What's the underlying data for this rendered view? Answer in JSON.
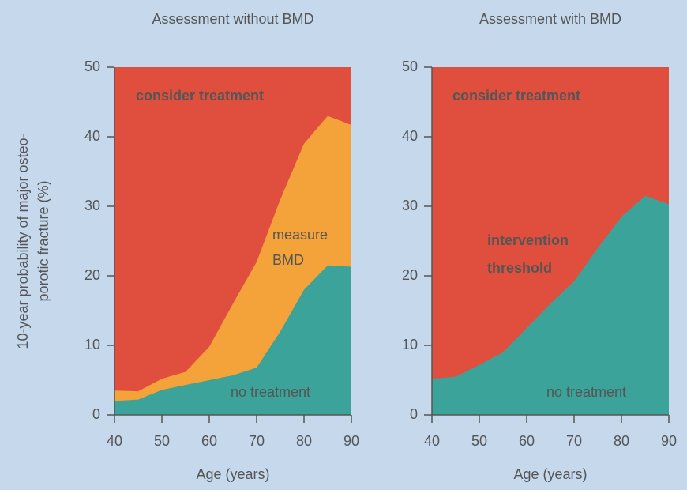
{
  "chart_data": [
    {
      "type": "area",
      "title": "Assessment without BMD",
      "ylabel": [
        "10-year probability of major osteo-",
        "porotic fracture (%)"
      ],
      "xlabel": "Age (years)",
      "x": [
        40,
        45,
        50,
        55,
        60,
        65,
        70,
        75,
        80,
        85,
        90
      ],
      "xlim": [
        40,
        90
      ],
      "xticks": [
        40,
        50,
        60,
        70,
        80,
        90
      ],
      "ylim": [
        0,
        50
      ],
      "yticks": [
        0,
        10,
        20,
        30,
        40,
        50
      ],
      "region_label": "consider treatment",
      "region_color": "#e04f3e",
      "series": [
        {
          "name": "measure BMD",
          "color": "#f3a33a",
          "values": [
            3.5,
            3.4,
            5.2,
            6.2,
            9.8,
            16,
            22,
            31,
            39,
            43,
            41.7
          ]
        },
        {
          "name": "no treatment",
          "color": "#3ba39a",
          "values": [
            2,
            2.2,
            3.6,
            4.3,
            5,
            5.7,
            6.8,
            12,
            18,
            21.5,
            21.3
          ]
        }
      ]
    },
    {
      "type": "area",
      "title": "Assessment with BMD",
      "xlabel": "Age (years)",
      "x": [
        40,
        45,
        50,
        55,
        60,
        65,
        70,
        75,
        80,
        85,
        90
      ],
      "xlim": [
        40,
        90
      ],
      "xticks": [
        40,
        50,
        60,
        70,
        80,
        90
      ],
      "ylim": [
        0,
        50
      ],
      "yticks": [
        0,
        10,
        20,
        30,
        40,
        50
      ],
      "region_label": "consider treatment",
      "region_color": "#e04f3e",
      "annotation": "intervention threshold",
      "series": [
        {
          "name": "no treatment",
          "color": "#3ba39a",
          "values": [
            5.2,
            5.5,
            7.2,
            9,
            12.5,
            16,
            19.2,
            24,
            28.5,
            31.5,
            30.3
          ]
        }
      ]
    }
  ]
}
